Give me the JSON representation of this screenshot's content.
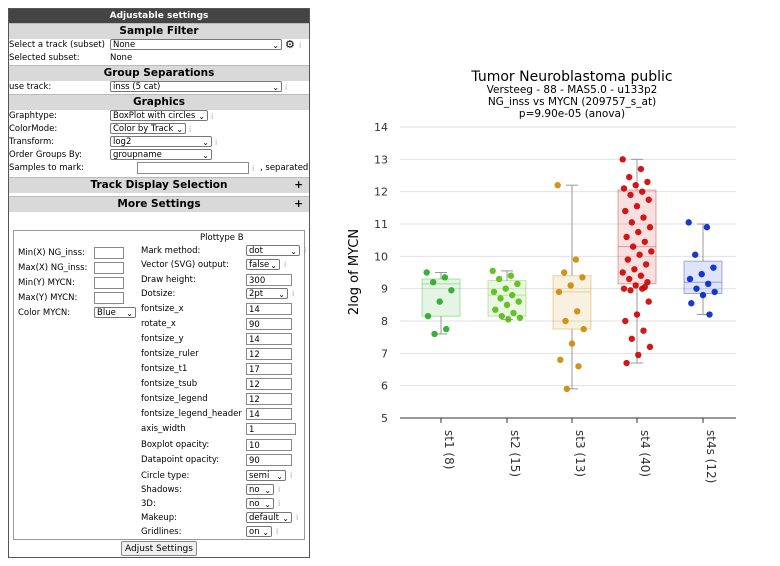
{
  "panel": {
    "title": "Adjustable settings",
    "sample_filter": {
      "header": "Sample Filter",
      "track_label": "Select a track (subset)",
      "track_value": "None",
      "selected_label": "Selected subset:",
      "selected_value": "None"
    },
    "group_sep": {
      "header": "Group Separations",
      "use_track_label": "use track:",
      "use_track_value": "inss (5 cat)"
    },
    "graphics": {
      "header": "Graphics",
      "graphtype_label": "Graphtype:",
      "graphtype_value": "BoxPlot with circles",
      "colormode_label": "ColorMode:",
      "colormode_value": "Color by Track",
      "transform_label": "Transform:",
      "transform_value": "log2",
      "order_label": "Order Groups By:",
      "order_value": "groupname",
      "mark_label": "Samples to mark:",
      "mark_suffix": ", separated"
    },
    "track_display": {
      "header": "Track Display Selection",
      "toggle": "+"
    },
    "more_settings": {
      "header": "More Settings",
      "toggle": "+"
    },
    "left_fields": [
      {
        "label": "Min(X) NG_inss:",
        "value": ""
      },
      {
        "label": "Max(X) NG_inss:",
        "value": ""
      },
      {
        "label": "Min(Y) MYCN:",
        "value": ""
      },
      {
        "label": "Max(Y) MYCN:",
        "value": ""
      }
    ],
    "color_label": "Color MYCN:",
    "color_value": "Blue",
    "plottype_header": "Plottype B",
    "settings": [
      {
        "label": "Mark method:",
        "value": "dot",
        "kind": "select"
      },
      {
        "label": "Vector (SVG) output:",
        "value": "false",
        "kind": "select"
      },
      {
        "label": "Draw height:",
        "value": "300",
        "kind": "input"
      },
      {
        "label": "Dotsize:",
        "value": "2pt",
        "kind": "select"
      },
      {
        "label": "fontsize_x",
        "value": "14",
        "kind": "input"
      },
      {
        "label": "rotate_x",
        "value": "90",
        "kind": "input"
      },
      {
        "label": "fontsize_y",
        "value": "14",
        "kind": "input"
      },
      {
        "label": "fontsize_ruler",
        "value": "12",
        "kind": "input"
      },
      {
        "label": "fontsize_t1",
        "value": "17",
        "kind": "input"
      },
      {
        "label": "fontsize_tsub",
        "value": "12",
        "kind": "input"
      },
      {
        "label": "fontsize_legend",
        "value": "12",
        "kind": "input"
      },
      {
        "label": "fontsize_legend_header",
        "value": "14",
        "kind": "input"
      },
      {
        "label": "axis_width",
        "value": "1",
        "kind": "input"
      },
      {
        "label": "Boxplot opacity:",
        "value": "10",
        "kind": "input"
      },
      {
        "label": "Datapoint opacity:",
        "value": "90",
        "kind": "input"
      },
      {
        "label": "Circle type:",
        "value": "semi",
        "kind": "select"
      },
      {
        "label": "Shadows:",
        "value": "no",
        "kind": "select"
      },
      {
        "label": "3D:",
        "value": "no",
        "kind": "select"
      },
      {
        "label": "Makeup:",
        "value": "default",
        "kind": "select"
      },
      {
        "label": "Gridlines:",
        "value": "on",
        "kind": "select"
      }
    ],
    "adjust_button": "Adjust Settings"
  },
  "chart_data": {
    "type": "scatter",
    "title": "Tumor Neuroblastoma public",
    "subtitle_lines": [
      "Versteeg - 88 - MAS5.0 - u133p2",
      "NG_inss vs MYCN (209757_s_at)",
      "p=9.90e-05  (anova)"
    ],
    "ylabel": "2log of MYCN",
    "ylim": [
      5,
      14
    ],
    "yticks": [
      5,
      6,
      7,
      8,
      9,
      10,
      11,
      12,
      13,
      14
    ],
    "grid": true,
    "groups": [
      {
        "label": "st1 (8)",
        "color": "#22aa22",
        "box": {
          "q1": 8.15,
          "median": 9.15,
          "q3": 9.3,
          "whisk_lo": 7.6,
          "whisk_hi": 9.5
        },
        "values": [
          9.5,
          9.35,
          9.2,
          8.95,
          8.6,
          8.15,
          7.75,
          7.6
        ]
      },
      {
        "label": "st2 (15)",
        "color": "#55bb11",
        "box": {
          "q1": 8.15,
          "median": 8.8,
          "q3": 9.25,
          "whisk_lo": 8.05,
          "whisk_hi": 9.55
        },
        "values": [
          9.55,
          9.4,
          9.3,
          9.15,
          9.0,
          8.9,
          8.8,
          8.7,
          8.6,
          8.5,
          8.35,
          8.25,
          8.15,
          8.1,
          8.05
        ]
      },
      {
        "label": "st3 (13)",
        "color": "#cc8800",
        "box": {
          "q1": 7.75,
          "median": 8.9,
          "q3": 9.4,
          "whisk_lo": 5.9,
          "whisk_hi": 12.2
        },
        "values": [
          12.2,
          9.9,
          9.5,
          9.35,
          9.1,
          8.9,
          8.3,
          8.0,
          7.75,
          7.3,
          6.8,
          6.6,
          5.9
        ]
      },
      {
        "label": "st4 (40)",
        "color": "#cc0000",
        "box": {
          "q1": 9.15,
          "median": 10.3,
          "q3": 12.05,
          "whisk_lo": 6.7,
          "whisk_hi": 13.0
        },
        "values": [
          13.0,
          12.7,
          12.45,
          12.3,
          12.2,
          12.1,
          12.0,
          11.9,
          11.75,
          11.55,
          11.4,
          11.2,
          11.05,
          10.9,
          10.75,
          10.6,
          10.45,
          10.3,
          10.15,
          10.05,
          9.9,
          9.75,
          9.6,
          9.5,
          9.4,
          9.3,
          9.2,
          9.1,
          9.0,
          9.0,
          8.95,
          8.6,
          8.2,
          8.0,
          7.7,
          7.45,
          7.2,
          6.95,
          6.7,
          9.05
        ]
      },
      {
        "label": "st4s (12)",
        "color": "#0022cc",
        "box": {
          "q1": 8.85,
          "median": 9.2,
          "q3": 9.85,
          "whisk_lo": 8.2,
          "whisk_hi": 11.0
        },
        "values": [
          11.05,
          10.9,
          10.05,
          9.65,
          9.45,
          9.3,
          9.15,
          9.0,
          8.9,
          8.8,
          8.55,
          8.2
        ]
      }
    ]
  }
}
